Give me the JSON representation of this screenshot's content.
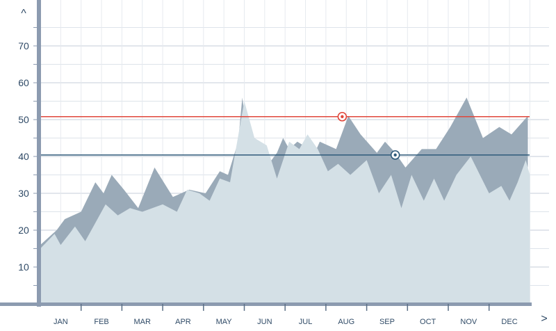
{
  "chart_data": {
    "type": "area",
    "x": [
      "JAN",
      "FEB",
      "MAR",
      "APR",
      "MAY",
      "JUN",
      "JUL",
      "AUG",
      "SEP",
      "OCT",
      "NOV",
      "DEC"
    ],
    "x_continuous_range": [
      0.5,
      12.5
    ],
    "y_ticks": [
      "10",
      "20",
      "30",
      "40",
      "50",
      "60",
      "70"
    ],
    "y_axis_arrow": "^",
    "x_axis_arrow": ">",
    "ylim": [
      0,
      80
    ],
    "grid": true,
    "reference_lines": [
      {
        "value": 50.8,
        "color": "#e0463a",
        "marker_x": 7.9
      },
      {
        "value": 40.4,
        "color": "#2f5a7a",
        "marker_x": 9.2
      }
    ],
    "series": [
      {
        "color": "#9aaab8",
        "points": [
          [
            0.5,
            16
          ],
          [
            0.7,
            18
          ],
          [
            0.9,
            20
          ],
          [
            1.1,
            23
          ],
          [
            1.5,
            25
          ],
          [
            1.85,
            33
          ],
          [
            2.05,
            30
          ],
          [
            2.25,
            35
          ],
          [
            2.55,
            31
          ],
          [
            2.9,
            26
          ],
          [
            3.3,
            37
          ],
          [
            3.75,
            29
          ],
          [
            4.15,
            31
          ],
          [
            4.55,
            30
          ],
          [
            4.9,
            36
          ],
          [
            5.1,
            35
          ],
          [
            5.35,
            44
          ],
          [
            5.45,
            56
          ],
          [
            5.6,
            44
          ],
          [
            5.85,
            43
          ],
          [
            6.1,
            38
          ],
          [
            6.3,
            41
          ],
          [
            6.45,
            45
          ],
          [
            6.6,
            42
          ],
          [
            6.8,
            44
          ],
          [
            6.95,
            43
          ],
          [
            7.15,
            39
          ],
          [
            7.35,
            44
          ],
          [
            7.75,
            42
          ],
          [
            8.05,
            51
          ],
          [
            8.35,
            46
          ],
          [
            8.75,
            41
          ],
          [
            8.95,
            44
          ],
          [
            9.2,
            41
          ],
          [
            9.45,
            37
          ],
          [
            9.85,
            42
          ],
          [
            10.2,
            42
          ],
          [
            10.55,
            48
          ],
          [
            10.95,
            56
          ],
          [
            11.35,
            45
          ],
          [
            11.75,
            48
          ],
          [
            12.05,
            46
          ],
          [
            12.45,
            51
          ]
        ]
      },
      {
        "color": "#d4e0e6",
        "points": [
          [
            0.5,
            15
          ],
          [
            0.85,
            19
          ],
          [
            1.0,
            16
          ],
          [
            1.35,
            21
          ],
          [
            1.6,
            17
          ],
          [
            1.9,
            23
          ],
          [
            2.1,
            27
          ],
          [
            2.4,
            24
          ],
          [
            2.7,
            26
          ],
          [
            3.0,
            25
          ],
          [
            3.5,
            27
          ],
          [
            3.85,
            25
          ],
          [
            4.1,
            31
          ],
          [
            4.4,
            30
          ],
          [
            4.65,
            28
          ],
          [
            4.9,
            34
          ],
          [
            5.15,
            33
          ],
          [
            5.5,
            55
          ],
          [
            5.75,
            45
          ],
          [
            6.05,
            43
          ],
          [
            6.3,
            34
          ],
          [
            6.6,
            44
          ],
          [
            6.85,
            42
          ],
          [
            7.05,
            46
          ],
          [
            7.3,
            42
          ],
          [
            7.55,
            36
          ],
          [
            7.8,
            38
          ],
          [
            8.1,
            35
          ],
          [
            8.5,
            39
          ],
          [
            8.8,
            30
          ],
          [
            9.1,
            35
          ],
          [
            9.35,
            26
          ],
          [
            9.6,
            35
          ],
          [
            9.9,
            28
          ],
          [
            10.15,
            34
          ],
          [
            10.4,
            28
          ],
          [
            10.7,
            35
          ],
          [
            11.05,
            40
          ],
          [
            11.5,
            30
          ],
          [
            11.8,
            32
          ],
          [
            12.0,
            28
          ],
          [
            12.2,
            33
          ],
          [
            12.4,
            39
          ],
          [
            12.5,
            35
          ]
        ]
      }
    ]
  }
}
